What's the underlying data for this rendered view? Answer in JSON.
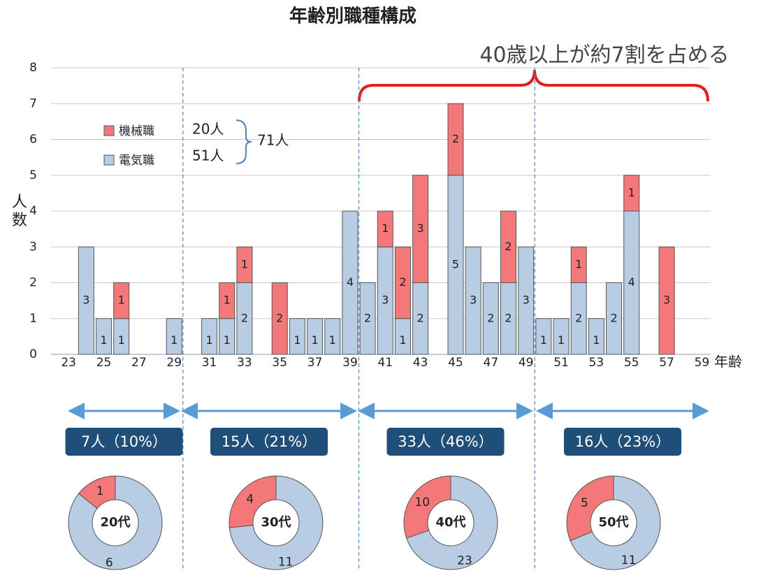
{
  "chart_data": [
    {
      "type": "bar",
      "stacked": true,
      "title": "年齢別職種構成",
      "y_label": "人数",
      "x_label": "年齢",
      "annotation": "40歳以上が約7割を占める",
      "x": [
        24,
        25,
        26,
        29,
        31,
        32,
        33,
        35,
        36,
        37,
        38,
        39,
        40,
        41,
        42,
        43,
        45,
        46,
        47,
        48,
        49,
        50,
        51,
        52,
        53,
        54,
        55,
        57
      ],
      "series": [
        {
          "name": "電気職",
          "color": "#b8cce4",
          "values": [
            3,
            1,
            1,
            1,
            1,
            1,
            2,
            0,
            1,
            1,
            1,
            4,
            2,
            3,
            1,
            2,
            5,
            3,
            2,
            2,
            3,
            1,
            1,
            2,
            1,
            2,
            4,
            0
          ]
        },
        {
          "name": "機械職",
          "color": "#f4777a",
          "values": [
            0,
            0,
            1,
            0,
            0,
            1,
            1,
            2,
            0,
            0,
            0,
            0,
            0,
            1,
            2,
            3,
            2,
            0,
            0,
            2,
            0,
            0,
            0,
            1,
            0,
            0,
            1,
            3
          ]
        }
      ],
      "legend_counts": [
        "51人",
        "20人"
      ],
      "legend_total": "71人",
      "xlim": [
        22,
        59.5
      ],
      "xticks": [
        23,
        25,
        27,
        29,
        31,
        33,
        35,
        37,
        39,
        41,
        43,
        45,
        47,
        49,
        51,
        53,
        55,
        57,
        59
      ],
      "ylim": [
        0,
        8
      ],
      "yticks": [
        0,
        1,
        2,
        3,
        4,
        5,
        6,
        7,
        8
      ],
      "grid": true
    },
    {
      "type": "pie",
      "banner": "7人（10%）",
      "label": "20代",
      "values": [
        6,
        1
      ],
      "colors": [
        "#b8cce4",
        "#f4777a"
      ]
    },
    {
      "type": "pie",
      "banner": "15人（21%）",
      "label": "30代",
      "values": [
        11,
        4
      ],
      "colors": [
        "#b8cce4",
        "#f4777a"
      ]
    },
    {
      "type": "pie",
      "banner": "33人（46%）",
      "label": "40代",
      "values": [
        23,
        10
      ],
      "colors": [
        "#b8cce4",
        "#f4777a"
      ]
    },
    {
      "type": "pie",
      "banner": "16人（23%）",
      "label": "50代",
      "values": [
        11,
        5
      ],
      "colors": [
        "#b8cce4",
        "#f4777a"
      ]
    }
  ]
}
